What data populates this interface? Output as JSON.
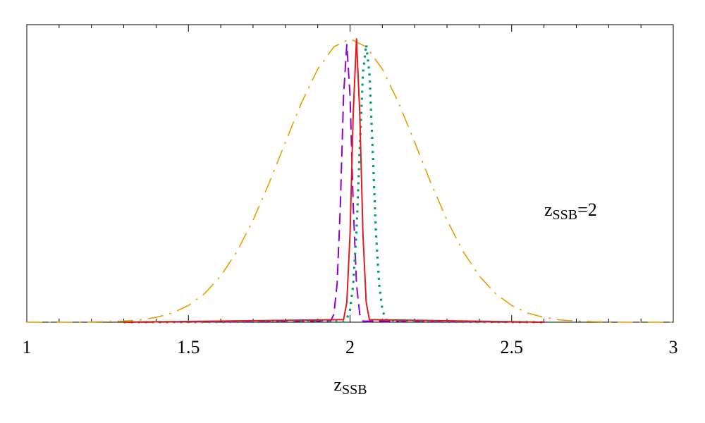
{
  "chart_data": {
    "type": "line",
    "xlabel": {
      "text": "z",
      "sub": "SSB"
    },
    "annotation": {
      "text": "z",
      "sub": "SSB",
      "after": "=2"
    },
    "xlim": [
      1,
      3
    ],
    "ylim": [
      0,
      1.05
    ],
    "xticks": [
      1,
      1.5,
      2,
      2.5,
      3
    ],
    "xminorticks": [
      1.1,
      1.2,
      1.3,
      1.4,
      1.6,
      1.7,
      1.8,
      1.9,
      2.1,
      2.2,
      2.3,
      2.4,
      2.6,
      2.7,
      2.8,
      2.9
    ],
    "series": [
      {
        "color": "#e69f00",
        "style": "dashdot",
        "x": [
          1,
          1.05,
          1.1,
          1.15,
          1.2,
          1.25,
          1.3,
          1.35,
          1.4,
          1.45,
          1.5,
          1.55,
          1.6,
          1.65,
          1.7,
          1.75,
          1.8,
          1.85,
          1.9,
          1.95,
          2,
          2.05,
          2.1,
          2.15,
          2.2,
          2.25,
          2.3,
          2.35,
          2.4,
          2.45,
          2.5,
          2.55,
          2.6,
          2.65,
          2.7,
          2.75,
          2.8,
          2.85,
          2.9,
          2.95,
          3
        ],
        "values": [
          0,
          0,
          0,
          0,
          0.001,
          0.002,
          0.004,
          0.008,
          0.017,
          0.032,
          0.059,
          0.101,
          0.163,
          0.249,
          0.36,
          0.492,
          0.635,
          0.775,
          0.893,
          0.972,
          1,
          0.972,
          0.893,
          0.775,
          0.635,
          0.492,
          0.36,
          0.249,
          0.163,
          0.101,
          0.059,
          0.032,
          0.017,
          0.008,
          0.004,
          0.002,
          0.001,
          0,
          0,
          0,
          0
        ]
      },
      {
        "color": "#9400d3",
        "style": "dashed",
        "x": [
          1.3,
          1.94,
          1.95,
          1.96,
          1.97,
          1.98,
          1.99,
          2,
          2.01,
          2.02,
          2.03,
          2.04,
          2.6
        ],
        "values": [
          0,
          0.004,
          0.028,
          0.135,
          0.41,
          0.8,
          0.98,
          0.8,
          0.41,
          0.135,
          0.028,
          0.004,
          0
        ]
      },
      {
        "color": "#009e73",
        "style": "dotted",
        "x": [
          1.3,
          1.98,
          1.99,
          2,
          2.01,
          2.02,
          2.03,
          2.04,
          2.05,
          2.06,
          2.07,
          2.08,
          2.09,
          2.1,
          2.11,
          2.12,
          2.6
        ],
        "values": [
          0,
          0.002,
          0.011,
          0.044,
          0.135,
          0.32,
          0.61,
          0.88,
          0.98,
          0.88,
          0.61,
          0.32,
          0.135,
          0.044,
          0.011,
          0.002,
          0
        ]
      },
      {
        "color": "#e41a1c",
        "style": "solid",
        "x": [
          1.3,
          1.98,
          1.99,
          2,
          2.01,
          2.02,
          2.03,
          2.04,
          2.05,
          2.06,
          2.6
        ],
        "values": [
          0,
          0.009,
          0.07,
          0.31,
          0.74,
          1,
          0.74,
          0.31,
          0.07,
          0.009,
          0
        ]
      }
    ]
  }
}
